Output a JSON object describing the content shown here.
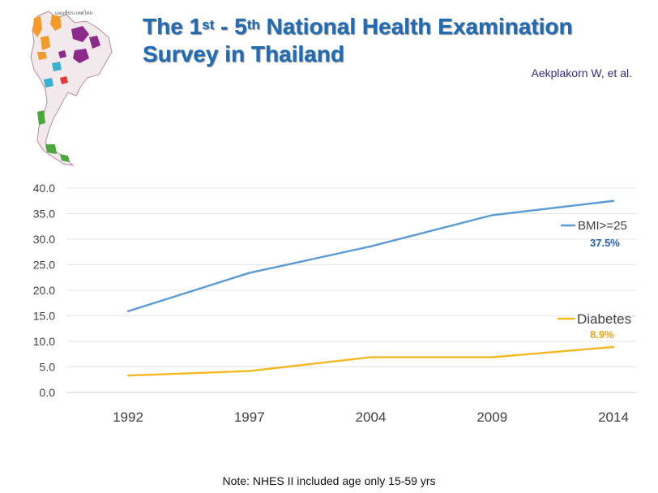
{
  "title": {
    "part1": "The 1",
    "sup1": "st",
    "part2": " - 5",
    "sup2": "th",
    "part3": " National Health Examination",
    "line2": "Survey in Thailand"
  },
  "author": "Aekplakorn W, et al.",
  "note": "Note: NHES II included age only 15-59 yrs",
  "map_caption": "แผนที่ประเทศไทย",
  "colors": {
    "bmi": "#5b9bd5",
    "diabetes": "#f5b820",
    "bmi_label": "#1f5fa6",
    "diabetes_label": "#e6a817",
    "title": "#1f6bb5"
  },
  "chart_data": {
    "type": "line",
    "categories": [
      "1992",
      "1997",
      "2004",
      "2009",
      "2014"
    ],
    "ylim": [
      0,
      40
    ],
    "yticks": [
      "0.0",
      "5.0",
      "10.0",
      "15.0",
      "20.0",
      "25.0",
      "30.0",
      "35.0",
      "40.0"
    ],
    "grid": true,
    "series": [
      {
        "name": "BMI>=25",
        "values": [
          15.9,
          23.4,
          28.6,
          34.7,
          37.5
        ],
        "end_label": "37.5%"
      },
      {
        "name": "Diabetes",
        "values": [
          3.3,
          4.2,
          6.9,
          6.9,
          8.9
        ],
        "end_label": "8.9%"
      }
    ]
  }
}
